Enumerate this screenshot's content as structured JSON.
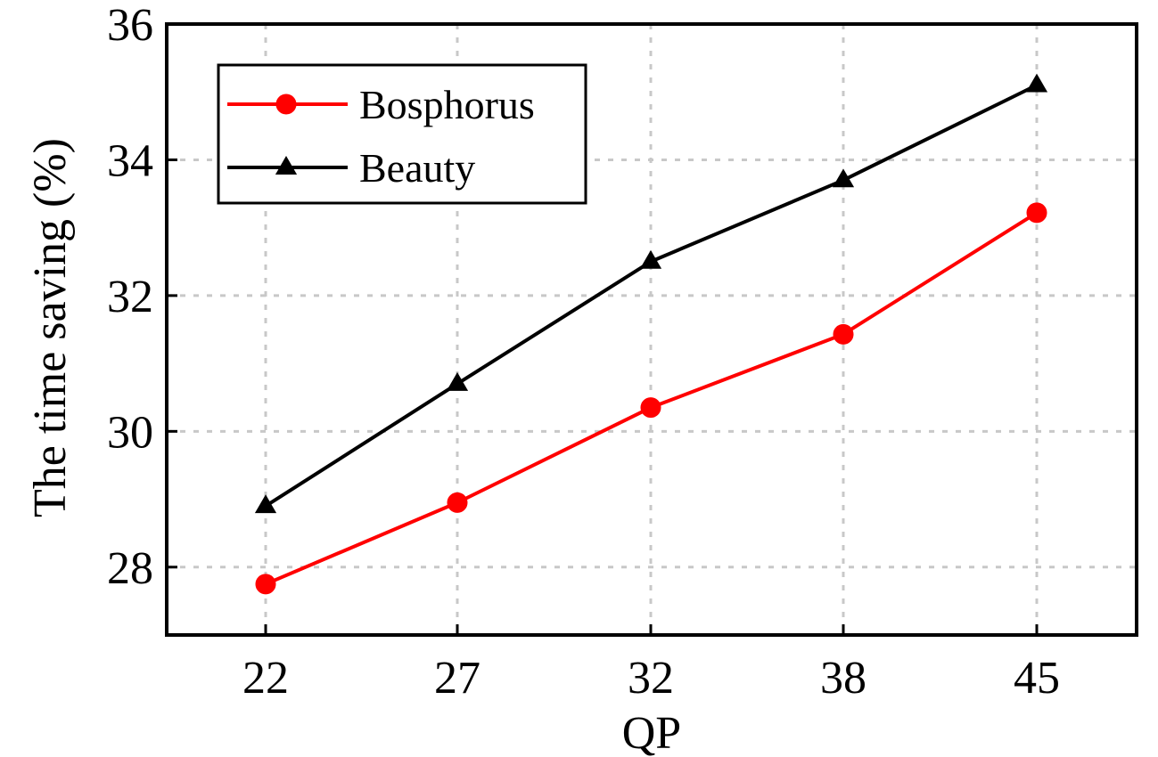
{
  "chart_data": {
    "type": "line",
    "xlabel": "QP",
    "ylabel": "The time saving (%)",
    "categories": [
      "22",
      "27",
      "32",
      "38",
      "45"
    ],
    "ylim": [
      27,
      36
    ],
    "yticks": [
      28,
      30,
      32,
      34,
      36
    ],
    "grid": true,
    "legend_position": "top-left",
    "series": [
      {
        "name": "Bosphorus",
        "color": "#ff0000",
        "marker": "circle",
        "values": [
          27.75,
          28.95,
          30.35,
          31.43,
          33.22
        ]
      },
      {
        "name": "Beauty",
        "color": "#000000",
        "marker": "triangle",
        "values": [
          28.9,
          30.7,
          32.5,
          33.7,
          35.1
        ]
      }
    ]
  }
}
